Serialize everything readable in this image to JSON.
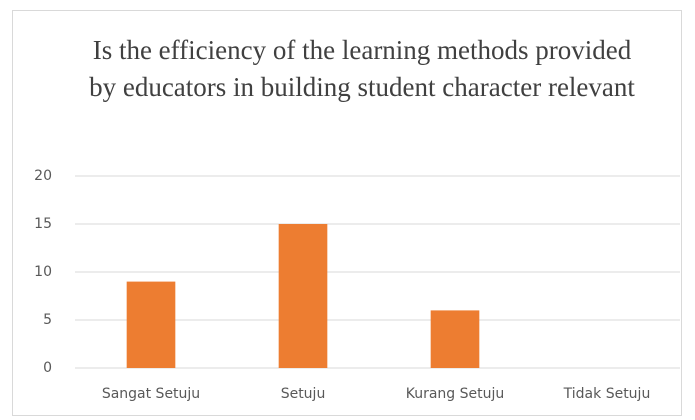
{
  "chart_data": {
    "type": "bar",
    "title": "Is the efficiency of the learning methods provided by educators in building student character relevant",
    "categories": [
      "Sangat Setuju",
      "Setuju",
      "Kurang Setuju",
      "Tidak Setuju"
    ],
    "values": [
      9,
      15,
      6,
      0
    ],
    "color": "#ed7d31",
    "ylim": [
      0,
      20
    ],
    "yticks": [
      0,
      5,
      10,
      15,
      20
    ],
    "grid": true
  }
}
